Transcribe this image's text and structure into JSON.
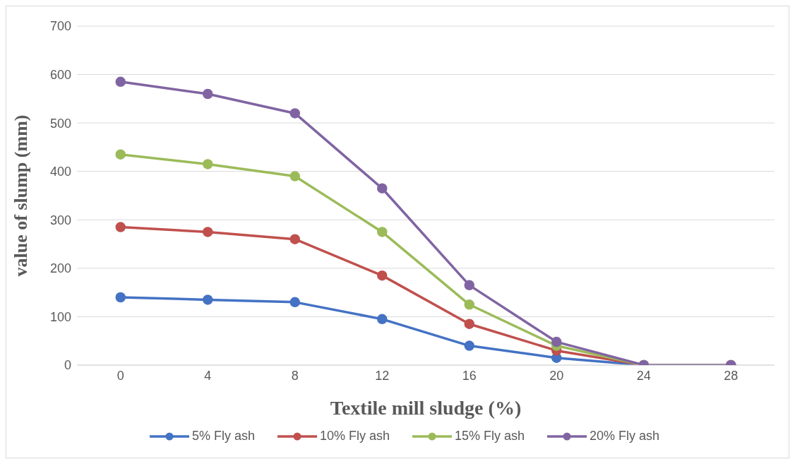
{
  "chart_data": {
    "type": "line",
    "xlabel": "Textile mill sludge (%)",
    "ylabel": "value of slump (mm)",
    "categories": [
      "0",
      "4",
      "8",
      "12",
      "16",
      "20",
      "24",
      "28"
    ],
    "series": [
      {
        "name": "5% Fly ash",
        "color": "#4472c4",
        "values": [
          140,
          135,
          130,
          95,
          40,
          15,
          0,
          0
        ]
      },
      {
        "name": "10% Fly ash",
        "color": "#c0504d",
        "values": [
          285,
          275,
          260,
          185,
          85,
          30,
          0,
          0
        ]
      },
      {
        "name": "15% Fly ash",
        "color": "#9bbb59",
        "values": [
          435,
          415,
          390,
          275,
          125,
          40,
          0,
          0
        ]
      },
      {
        "name": "20% Fly ash",
        "color": "#8064a2",
        "values": [
          585,
          560,
          520,
          365,
          165,
          48,
          0,
          0
        ]
      }
    ],
    "ylim": [
      0,
      700
    ],
    "yticks": [
      0,
      100,
      200,
      300,
      400,
      500,
      600,
      700
    ],
    "grid": "y",
    "legend": "bottom",
    "marker": "circle",
    "line_style": "solid"
  }
}
